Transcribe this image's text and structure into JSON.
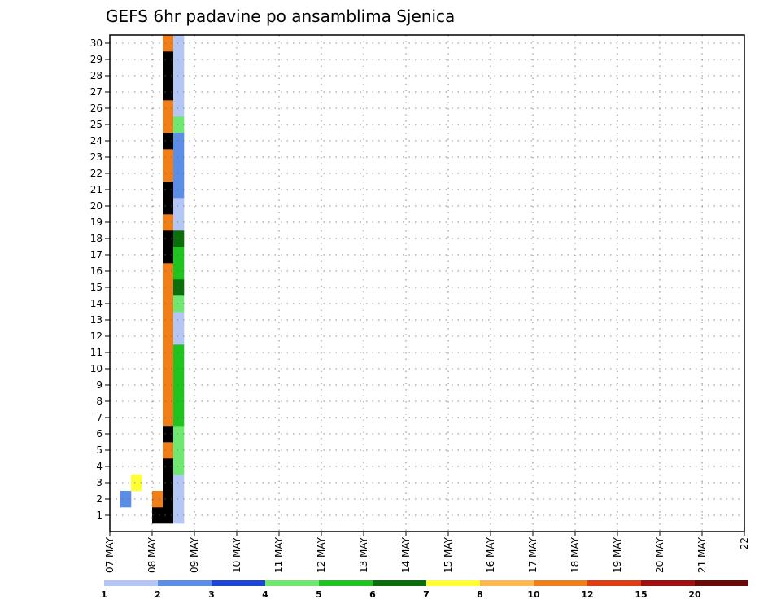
{
  "chart_data": {
    "type": "heatmap",
    "title": "GEFS 6hr padavine po ansamblima Sjenica",
    "x_tick_labels": [
      "07 MAY",
      "08 MAY",
      "09 MAY",
      "10 MAY",
      "11 MAY",
      "12 MAY",
      "13 MAY",
      "14 MAY",
      "15 MAY",
      "16 MAY",
      "17 MAY",
      "18 MAY",
      "19 MAY",
      "20 MAY",
      "21 MAY",
      "22"
    ],
    "y_tick_labels": [
      "1",
      "2",
      "3",
      "4",
      "5",
      "6",
      "7",
      "8",
      "9",
      "10",
      "11",
      "12",
      "13",
      "14",
      "15",
      "16",
      "17",
      "18",
      "19",
      "20",
      "21",
      "22",
      "23",
      "24",
      "25",
      "26",
      "27",
      "28",
      "29",
      "30"
    ],
    "xlim": [
      0,
      60
    ],
    "ylim": [
      0.5,
      30.5
    ],
    "grid": true,
    "legend": "bottom",
    "colorbar": {
      "labels": [
        "1",
        "2",
        "3",
        "4",
        "5",
        "6",
        "7",
        "8",
        "10",
        "12",
        "15",
        "20"
      ],
      "colors": [
        "#b3c6f5",
        "#5b8ee6",
        "#1c46d8",
        "#6ee86e",
        "#1fc41f",
        "#0a6e0a",
        "#ffff33",
        "#ffb84d",
        "#f07f1a",
        "#e03c14",
        "#a01010",
        "#6b0808"
      ]
    },
    "cells": [
      [
        1,
        2,
        2
      ],
      [
        2,
        3,
        7
      ],
      [
        4,
        1,
        16
      ],
      [
        4,
        2,
        9
      ],
      [
        5,
        1,
        16
      ],
      [
        5,
        2,
        16
      ],
      [
        5,
        3,
        16
      ],
      [
        5,
        4,
        16
      ],
      [
        5,
        5,
        9
      ],
      [
        5,
        6,
        16
      ],
      [
        5,
        7,
        9
      ],
      [
        5,
        8,
        9
      ],
      [
        5,
        9,
        9
      ],
      [
        5,
        10,
        9
      ],
      [
        5,
        11,
        9
      ],
      [
        5,
        12,
        9
      ],
      [
        5,
        13,
        9
      ],
      [
        5,
        14,
        9
      ],
      [
        5,
        15,
        9
      ],
      [
        5,
        16,
        9
      ],
      [
        5,
        17,
        16
      ],
      [
        5,
        18,
        16
      ],
      [
        5,
        19,
        9
      ],
      [
        5,
        20,
        16
      ],
      [
        5,
        21,
        16
      ],
      [
        5,
        22,
        9
      ],
      [
        5,
        23,
        9
      ],
      [
        5,
        24,
        16
      ],
      [
        5,
        25,
        9
      ],
      [
        5,
        26,
        9
      ],
      [
        5,
        27,
        16
      ],
      [
        5,
        28,
        16
      ],
      [
        5,
        29,
        16
      ],
      [
        5,
        30,
        9
      ],
      [
        6,
        1,
        1
      ],
      [
        6,
        2,
        1
      ],
      [
        6,
        3,
        1
      ],
      [
        6,
        4,
        4
      ],
      [
        6,
        5,
        4
      ],
      [
        6,
        6,
        4
      ],
      [
        6,
        7,
        5
      ],
      [
        6,
        8,
        5
      ],
      [
        6,
        9,
        5
      ],
      [
        6,
        10,
        5
      ],
      [
        6,
        11,
        5
      ],
      [
        6,
        12,
        1
      ],
      [
        6,
        13,
        1
      ],
      [
        6,
        14,
        4
      ],
      [
        6,
        15,
        6
      ],
      [
        6,
        16,
        5
      ],
      [
        6,
        17,
        5
      ],
      [
        6,
        18,
        6
      ],
      [
        6,
        19,
        1
      ],
      [
        6,
        20,
        1
      ],
      [
        6,
        21,
        2
      ],
      [
        6,
        22,
        2
      ],
      [
        6,
        23,
        2
      ],
      [
        6,
        24,
        2
      ],
      [
        6,
        25,
        4
      ],
      [
        6,
        26,
        1
      ],
      [
        6,
        27,
        1
      ],
      [
        6,
        28,
        1
      ],
      [
        6,
        29,
        1
      ],
      [
        6,
        30,
        1
      ]
    ]
  }
}
